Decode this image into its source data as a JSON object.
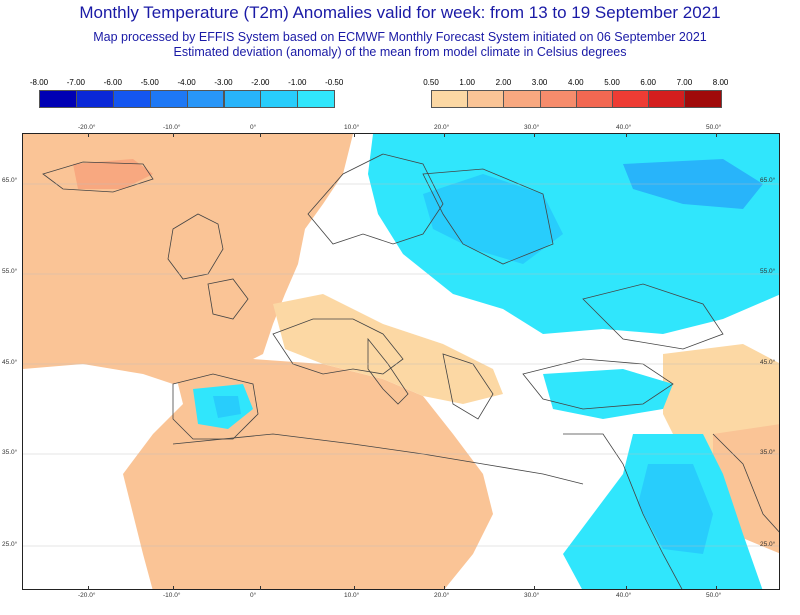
{
  "header": {
    "title": "Monthly Temperature (T2m) Anomalies valid for week: from 13 to 19 September 2021",
    "subtitle1": "Map processed by EFFIS System based on ECMWF Monthly Forecast System initiated on 06 September 2021",
    "subtitle2": "Estimated deviation (anomaly) of the mean from model climate in Celsius degrees"
  },
  "legend": {
    "cold": {
      "labels": [
        "-8.00",
        "-7.00",
        "-6.00",
        "-5.00",
        "-4.00",
        "-3.00",
        "-2.00",
        "-1.00",
        "-0.50"
      ],
      "colors": [
        "#0000b4",
        "#0a28d8",
        "#1456f0",
        "#1e78f5",
        "#2896f8",
        "#28b4fa",
        "#28cdfc",
        "#30e6fc"
      ]
    },
    "warm": {
      "labels": [
        "0.50",
        "1.00",
        "2.00",
        "3.00",
        "4.00",
        "5.00",
        "6.00",
        "7.00",
        "8.00"
      ],
      "colors": [
        "#fcd8a4",
        "#fac496",
        "#f8a880",
        "#f68c6c",
        "#f26852",
        "#ee3c34",
        "#d41e1e",
        "#a00a0a"
      ]
    }
  },
  "map": {
    "lon_ticks": [
      "-20.0°",
      "-10.0°",
      "0°",
      "10.0°",
      "20.0°",
      "30.0°",
      "40.0°",
      "50.0°"
    ],
    "lat_ticks": [
      "65.0°",
      "55.0°",
      "45.0°",
      "35.0°",
      "25.0°"
    ],
    "colors": {
      "land_border": "#444444",
      "warm_light": "#fcd8a4",
      "warm_mid": "#f8b890",
      "cold_light": "#30e6fc",
      "cold_mid": "#28cdfc",
      "cold_deep": "#28b4fa"
    }
  }
}
